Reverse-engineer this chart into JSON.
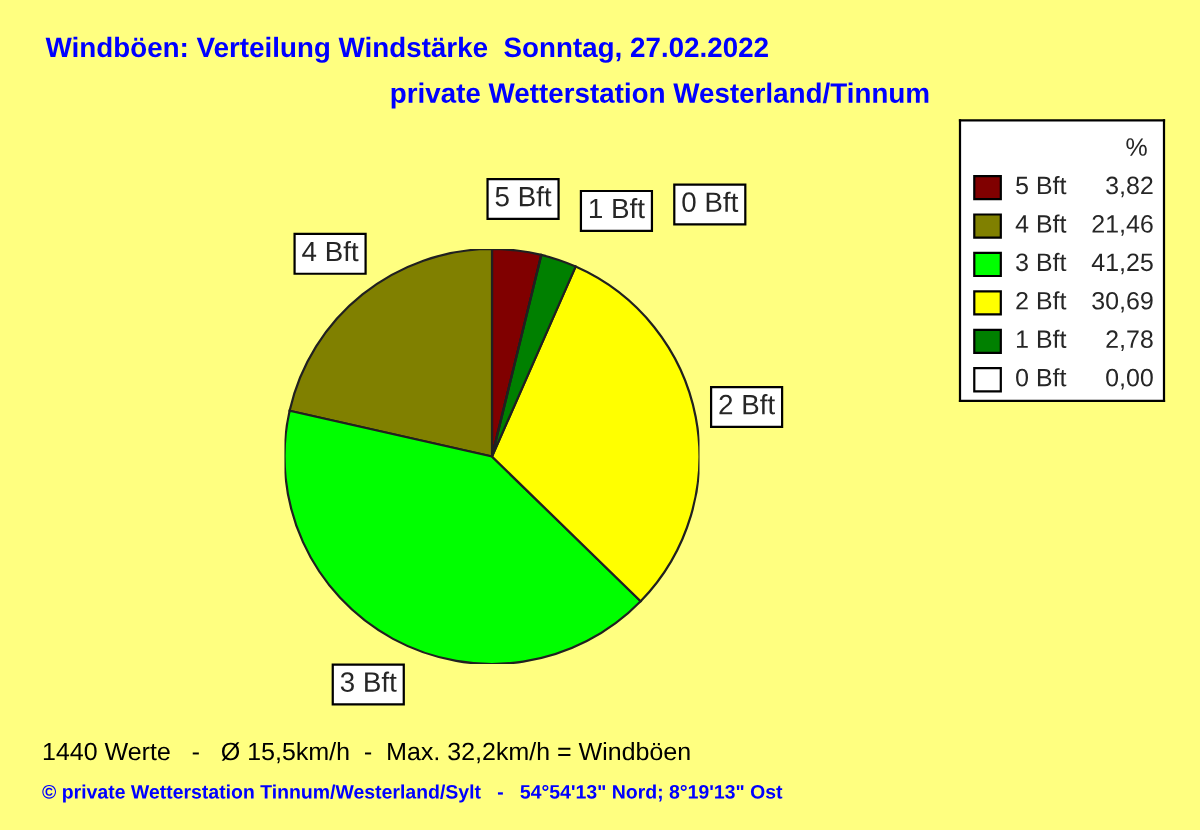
{
  "chart_data": {
    "type": "pie",
    "title": "Windböen: Verteilung Windstärke  Sonntag, 27.02.2022",
    "subtitle": "private Wetterstation Westerland/Tinnum",
    "categories": [
      "5 Bft",
      "4 Bft",
      "3 Bft",
      "2 Bft",
      "1 Bft",
      "0 Bft"
    ],
    "values": [
      3.82,
      21.46,
      41.25,
      30.69,
      2.78,
      0.0
    ],
    "value_labels": [
      "3,82",
      "21,46",
      "41,25",
      "30,69",
      "2,78",
      "0,00"
    ],
    "colors": [
      "#800000",
      "#808000",
      "#00ff00",
      "#ffff00",
      "#008000",
      "#ffffff"
    ],
    "legend_title": "%",
    "legend": "top right",
    "annotations": [
      "1440 Werte   -   Ø 15,5km/h  -  Max. 32,2km/h = Windböen",
      "© private Wetterstation Tinnum/Westerland/Sylt   -   54°54'13\" Nord; 8°19'13\" Ost"
    ]
  }
}
